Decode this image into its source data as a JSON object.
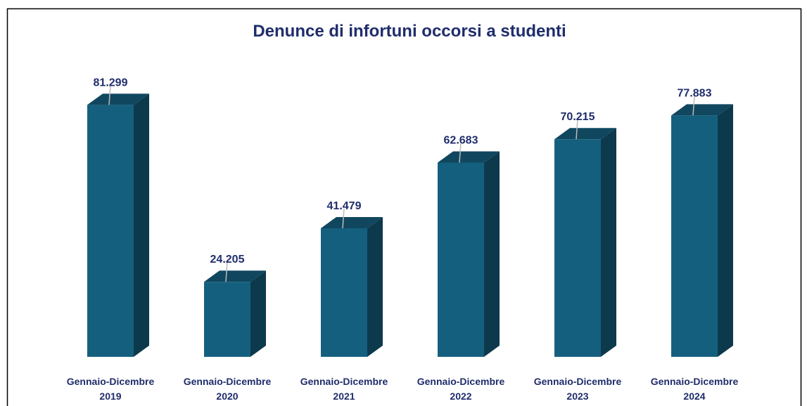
{
  "chart_data": {
    "type": "bar3d",
    "title": "Denunce di infortuni occorsi a studenti",
    "categories": [
      "Gennaio-Dicembre 2019",
      "Gennaio-Dicembre 2020",
      "Gennaio-Dicembre 2021",
      "Gennaio-Dicembre 2022",
      "Gennaio-Dicembre 2023",
      "Gennaio-Dicembre 2024"
    ],
    "values": [
      81299,
      24205,
      41479,
      62683,
      70215,
      77883
    ],
    "value_labels": [
      "81.299",
      "24.205",
      "41.479",
      "62.683",
      "70.215",
      "77.883"
    ],
    "color": "#155f7e",
    "ylim": [
      0,
      85000
    ]
  }
}
